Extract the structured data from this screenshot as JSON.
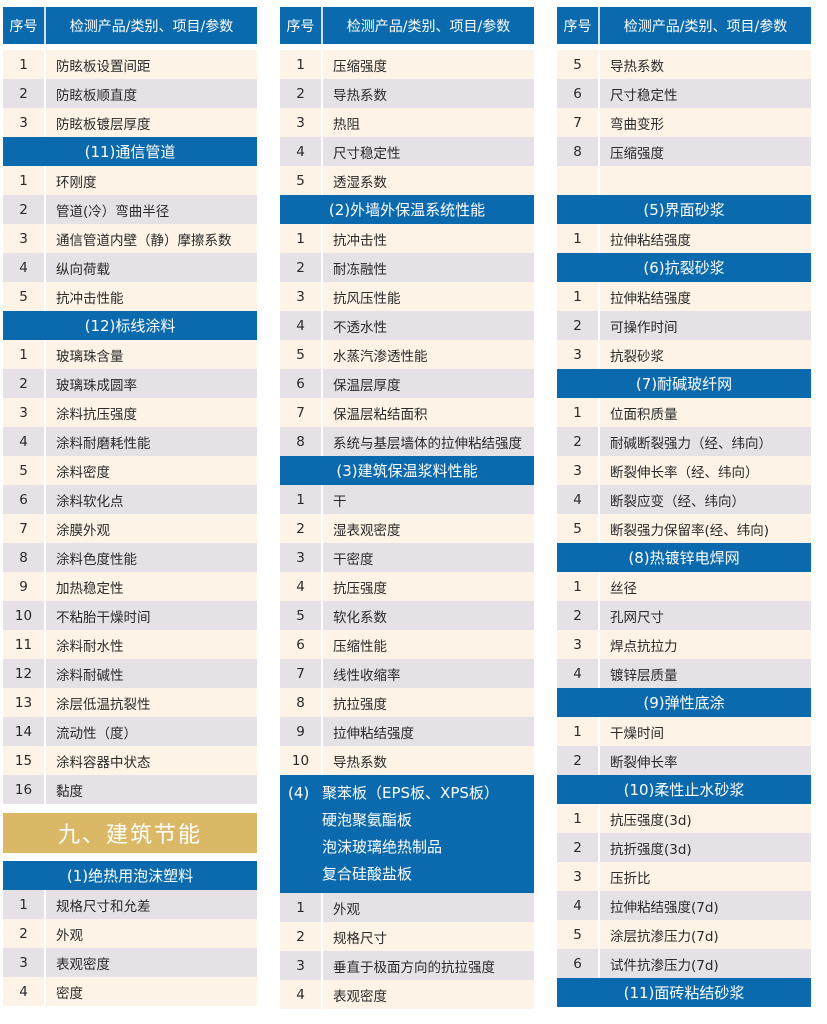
{
  "colors": {
    "blue": "#0a6aad",
    "cream": "#fdf3e6",
    "grey": "#e6e1e6",
    "gold": "#dab865"
  },
  "header": {
    "num": "序号",
    "title": "检测产品/类别、项目/参数"
  },
  "columns": [
    [
      {
        "type": "header"
      },
      {
        "type": "row",
        "n": "1",
        "t": "防眩板设置间距"
      },
      {
        "type": "row",
        "n": "2",
        "t": "防眩板顺直度"
      },
      {
        "type": "row",
        "n": "3",
        "t": "防眩板镀层厚度"
      },
      {
        "type": "section",
        "t": "(11)通信管道"
      },
      {
        "type": "row",
        "n": "1",
        "t": "环刚度"
      },
      {
        "type": "row",
        "n": "2",
        "t": "管道(冷）弯曲半径"
      },
      {
        "type": "row",
        "n": "3",
        "t": "通信管道内壁（静）摩擦系数"
      },
      {
        "type": "row",
        "n": "4",
        "t": "纵向荷载"
      },
      {
        "type": "row",
        "n": "5",
        "t": "抗冲击性能"
      },
      {
        "type": "section",
        "t": "(12)标线涂料"
      },
      {
        "type": "row",
        "n": "1",
        "t": "玻璃珠含量"
      },
      {
        "type": "row",
        "n": "2",
        "t": "玻璃珠成圆率"
      },
      {
        "type": "row",
        "n": "3",
        "t": "涂料抗压强度"
      },
      {
        "type": "row",
        "n": "4",
        "t": "涂料耐磨耗性能"
      },
      {
        "type": "row",
        "n": "5",
        "t": "涂料密度"
      },
      {
        "type": "row",
        "n": "6",
        "t": "涂料软化点"
      },
      {
        "type": "row",
        "n": "7",
        "t": "涂膜外观"
      },
      {
        "type": "row",
        "n": "8",
        "t": "涂料色度性能"
      },
      {
        "type": "row",
        "n": "9",
        "t": "加热稳定性"
      },
      {
        "type": "row",
        "n": "10",
        "t": "不粘胎干燥时间"
      },
      {
        "type": "row",
        "n": "11",
        "t": "涂料耐水性"
      },
      {
        "type": "row",
        "n": "12",
        "t": "涂料耐碱性"
      },
      {
        "type": "row",
        "n": "13",
        "t": "涂层低温抗裂性"
      },
      {
        "type": "row",
        "n": "14",
        "t": "流动性（度）"
      },
      {
        "type": "row",
        "n": "15",
        "t": "涂料容器中状态"
      },
      {
        "type": "row",
        "n": "16",
        "t": "黏度"
      },
      {
        "type": "gold",
        "t": "九、建筑节能"
      },
      {
        "type": "section",
        "t": "(1)绝热用泡沫塑料",
        "first": "grey"
      },
      {
        "type": "row",
        "n": "1",
        "t": "规格尺寸和允差"
      },
      {
        "type": "row",
        "n": "2",
        "t": "外观"
      },
      {
        "type": "row",
        "n": "3",
        "t": "表观密度"
      },
      {
        "type": "row",
        "n": "4",
        "t": "密度"
      }
    ],
    [
      {
        "type": "header"
      },
      {
        "type": "row",
        "n": "1",
        "t": "压缩强度"
      },
      {
        "type": "row",
        "n": "2",
        "t": "导热系数"
      },
      {
        "type": "row",
        "n": "3",
        "t": "热阻"
      },
      {
        "type": "row",
        "n": "4",
        "t": "尺寸稳定性"
      },
      {
        "type": "row",
        "n": "5",
        "t": "透湿系数"
      },
      {
        "type": "section",
        "t": "(2)外墙外保温系统性能"
      },
      {
        "type": "row",
        "n": "1",
        "t": "抗冲击性"
      },
      {
        "type": "row",
        "n": "2",
        "t": "耐冻融性"
      },
      {
        "type": "row",
        "n": "3",
        "t": "抗风压性能"
      },
      {
        "type": "row",
        "n": "4",
        "t": "不透水性"
      },
      {
        "type": "row",
        "n": "5",
        "t": "水蒸汽渗透性能"
      },
      {
        "type": "row",
        "n": "6",
        "t": "保温层厚度"
      },
      {
        "type": "row",
        "n": "7",
        "t": "保温层粘结面积"
      },
      {
        "type": "row",
        "n": "8",
        "t": "系统与基层墙体的拉伸粘结强度"
      },
      {
        "type": "section",
        "t": "(3)建筑保温浆料性能",
        "first": "grey"
      },
      {
        "type": "row",
        "n": "1",
        "t": "干"
      },
      {
        "type": "row",
        "n": "2",
        "t": "湿表观密度"
      },
      {
        "type": "row",
        "n": "3",
        "t": "干密度"
      },
      {
        "type": "row",
        "n": "4",
        "t": "抗压强度"
      },
      {
        "type": "row",
        "n": "5",
        "t": "软化系数"
      },
      {
        "type": "row",
        "n": "6",
        "t": "压缩性能"
      },
      {
        "type": "row",
        "n": "7",
        "t": "线性收缩率"
      },
      {
        "type": "row",
        "n": "8",
        "t": "抗拉强度"
      },
      {
        "type": "row",
        "n": "9",
        "t": "拉伸粘结强度"
      },
      {
        "type": "row",
        "n": "10",
        "t": "导热系数"
      },
      {
        "type": "multi",
        "prefix": "(4)",
        "lines": [
          "聚苯板（EPS板、XPS板）",
          "硬泡聚氨酯板",
          "泡沫玻璃绝热制品",
          "复合硅酸盐板"
        ],
        "first": "grey"
      },
      {
        "type": "row",
        "n": "1",
        "t": "外观"
      },
      {
        "type": "row",
        "n": "2",
        "t": "规格尺寸"
      },
      {
        "type": "row",
        "n": "3",
        "t": "垂直于极面方向的抗拉强度"
      },
      {
        "type": "row",
        "n": "4",
        "t": "表观密度"
      }
    ],
    [
      {
        "type": "header"
      },
      {
        "type": "row",
        "n": "5",
        "t": "导热系数"
      },
      {
        "type": "row",
        "n": "6",
        "t": "尺寸稳定性"
      },
      {
        "type": "row",
        "n": "7",
        "t": "弯曲变形"
      },
      {
        "type": "row",
        "n": "8",
        "t": "压缩强度"
      },
      {
        "type": "row",
        "n": "",
        "t": ""
      },
      {
        "type": "section",
        "t": "(5)界面砂浆"
      },
      {
        "type": "row",
        "n": "1",
        "t": "拉伸粘结强度"
      },
      {
        "type": "section",
        "t": "(6)抗裂砂浆"
      },
      {
        "type": "row",
        "n": "1",
        "t": "拉伸粘结强度"
      },
      {
        "type": "row",
        "n": "2",
        "t": "可操作时间"
      },
      {
        "type": "row",
        "n": "3",
        "t": "抗裂砂浆"
      },
      {
        "type": "section",
        "t": "(7)耐碱玻纤网"
      },
      {
        "type": "row",
        "n": "1",
        "t": "位面积质量"
      },
      {
        "type": "row",
        "n": "2",
        "t": "耐碱断裂强力（经、纬向）"
      },
      {
        "type": "row",
        "n": "3",
        "t": "断裂伸长率（经、纬向）"
      },
      {
        "type": "row",
        "n": "4",
        "t": "断裂应变（经、纬向）"
      },
      {
        "type": "row",
        "n": "5",
        "t": "断裂强力保留率(经、纬向)"
      },
      {
        "type": "section",
        "t": "(8)热镀锌电焊网"
      },
      {
        "type": "row",
        "n": "1",
        "t": "丝径"
      },
      {
        "type": "row",
        "n": "2",
        "t": "孔网尺寸"
      },
      {
        "type": "row",
        "n": "3",
        "t": "焊点抗拉力"
      },
      {
        "type": "row",
        "n": "4",
        "t": "镀锌层质量"
      },
      {
        "type": "section",
        "t": "(9)弹性底涂"
      },
      {
        "type": "row",
        "n": "1",
        "t": "干燥时间"
      },
      {
        "type": "row",
        "n": "2",
        "t": "断裂伸长率"
      },
      {
        "type": "section",
        "t": "(10)柔性止水砂浆"
      },
      {
        "type": "row",
        "n": "1",
        "t": "抗压强度(3d)"
      },
      {
        "type": "row",
        "n": "2",
        "t": "抗折强度(3d)"
      },
      {
        "type": "row",
        "n": "3",
        "t": "压折比"
      },
      {
        "type": "row",
        "n": "4",
        "t": "拉伸粘结强度(7d)"
      },
      {
        "type": "row",
        "n": "5",
        "t": "涂层抗渗压力(7d)"
      },
      {
        "type": "row",
        "n": "6",
        "t": "试件抗渗压力(7d)"
      },
      {
        "type": "section",
        "t": "(11)面砖粘结砂浆"
      }
    ]
  ]
}
